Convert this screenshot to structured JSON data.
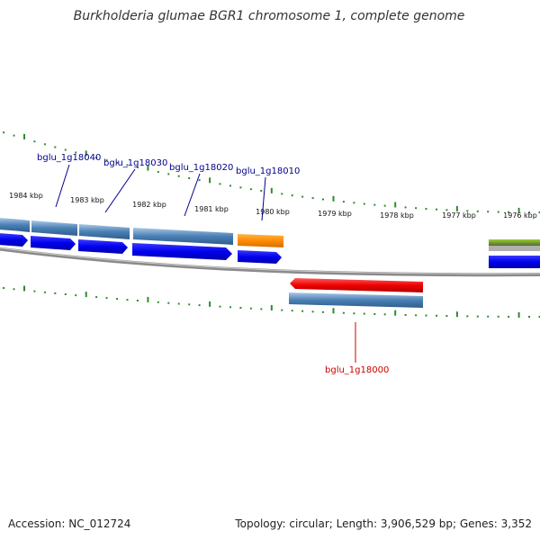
{
  "title": "Burkholderia glumae BGR1 chromosome 1, complete genome",
  "footer": {
    "accession": "Accession: NC_012724",
    "summary": "Topology: circular; Length: 3,906,529 bp; Genes: 3,352"
  },
  "ruler_labels": [
    "1984 kbp",
    "1983 kbp",
    "1982 kbp",
    "1981 kbp",
    "1980 kbp",
    "1979 kbp",
    "1978 kbp",
    "1977 kbp",
    "1976 kbp"
  ],
  "gene_labels": {
    "g18040": "bglu_1g18040",
    "g18030": "bglu_1g18030",
    "g18020": "bglu_1g18020",
    "g18010": "bglu_1g18010",
    "g18000": "bglu_1g18000"
  },
  "colors": {
    "backbone": "#808080",
    "tick": "#2e8b2e",
    "forward_feature": "#4a7fb5",
    "cds": "#0000ee",
    "highlight_feature": "#ff8c00",
    "reverse_cds": "#ee0000",
    "rrna_like": "#6b8e23",
    "label_forward": "#00008b",
    "label_reverse": "#cc0000"
  }
}
